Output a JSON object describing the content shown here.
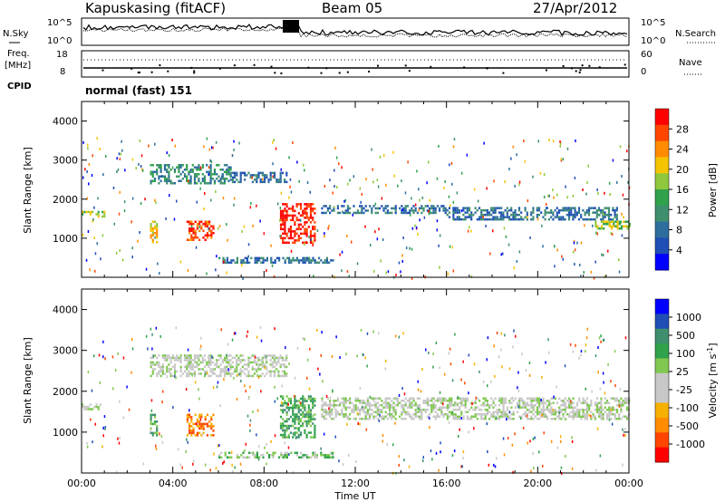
{
  "header": {
    "station": "Kapuskasing (fitACF)",
    "beam": "Beam 05",
    "date": "27/Apr/2012",
    "cpid_label": "CPID",
    "cpid_value": "normal (fast) 151"
  },
  "noise_panel": {
    "left_label": "N.Sky",
    "right_label": "N.Search",
    "left_ticks": [
      "10^5",
      "10^0"
    ],
    "right_ticks": [
      "10^5",
      "10^0"
    ]
  },
  "freq_panel": {
    "left_label_1": "Freq.",
    "left_label_2": "[MHz]",
    "right_label": "Nave",
    "left_ticks": [
      18,
      8
    ],
    "right_ticks": [
      60,
      0
    ]
  },
  "colors": {
    "power_scale": [
      "#0000ff",
      "#1f4fb4",
      "#2e6e9e",
      "#3f8f6f",
      "#2fa24b",
      "#90c83c",
      "#f5c400",
      "#ff8c00",
      "#ff4500",
      "#ff0000"
    ],
    "velocity_scale": [
      "#ff0000",
      "#ff4500",
      "#ff8c00",
      "#f5b000",
      "#c8c8c8",
      "#c8c8c8",
      "#80c850",
      "#2fa24b",
      "#3f8f6f",
      "#1f4fb4",
      "#0000ff"
    ]
  },
  "chart_data": [
    {
      "type": "heatmap",
      "name": "power",
      "ylabel": "Slant Range [km]",
      "yticks": [
        1000,
        2000,
        3000,
        4000
      ],
      "ylim": [
        0,
        4500
      ],
      "xlim_hours": [
        0,
        24
      ],
      "colorbar_label": "Power [dB]",
      "colorbar_ticks": [
        "28",
        "24",
        "20",
        "16",
        "12",
        "8",
        "4"
      ],
      "echo_regions": [
        {
          "t": [
            0.0,
            1.0
          ],
          "range": [
            1550,
            1700
          ],
          "level": 5
        },
        {
          "t": [
            3.0,
            3.3
          ],
          "range": [
            900,
            1450
          ],
          "level": 6
        },
        {
          "t": [
            3.0,
            6.5
          ],
          "range": [
            2400,
            2900
          ],
          "level": 3
        },
        {
          "t": [
            6.5,
            9.0
          ],
          "range": [
            2450,
            2700
          ],
          "level": 2
        },
        {
          "t": [
            4.6,
            5.8
          ],
          "range": [
            950,
            1450
          ],
          "level": 8
        },
        {
          "t": [
            8.7,
            10.2
          ],
          "range": [
            900,
            1900
          ],
          "level": 9
        },
        {
          "t": [
            10.5,
            16.0
          ],
          "range": [
            1650,
            1850
          ],
          "level": 2
        },
        {
          "t": [
            16.0,
            23.5
          ],
          "range": [
            1500,
            1800
          ],
          "level": 2
        },
        {
          "t": [
            22.5,
            24.0
          ],
          "range": [
            1250,
            1450
          ],
          "level": 5
        },
        {
          "t": [
            6.0,
            11.0
          ],
          "range": [
            380,
            520
          ],
          "level": 2
        }
      ]
    },
    {
      "type": "heatmap",
      "name": "velocity",
      "ylabel": "Slant Range [km]",
      "yticks": [
        1000,
        2000,
        3000,
        4000
      ],
      "ylim": [
        0,
        4500
      ],
      "xlim_hours": [
        0,
        24
      ],
      "xticks": [
        "00:00",
        "04:00",
        "08:00",
        "12:00",
        "16:00",
        "20:00",
        "00:00"
      ],
      "xlabel": "Time UT",
      "colorbar_label": "Velocity [m s^-1]",
      "colorbar_ticks": [
        "1000",
        "500",
        "100",
        "25",
        "-25",
        "-100",
        "-500",
        "-1000"
      ],
      "echo_regions": [
        {
          "t": [
            0.0,
            1.0
          ],
          "range": [
            1550,
            1700
          ],
          "level": 5
        },
        {
          "t": [
            3.0,
            3.3
          ],
          "range": [
            900,
            1450
          ],
          "level": 7
        },
        {
          "t": [
            3.0,
            9.0
          ],
          "range": [
            2400,
            2900
          ],
          "level": 5
        },
        {
          "t": [
            4.6,
            5.8
          ],
          "range": [
            950,
            1450
          ],
          "level": 2
        },
        {
          "t": [
            8.7,
            10.2
          ],
          "range": [
            900,
            1900
          ],
          "level": 7
        },
        {
          "t": [
            10.5,
            24.0
          ],
          "range": [
            1300,
            1850
          ],
          "level": 5
        },
        {
          "t": [
            6.0,
            11.0
          ],
          "range": [
            380,
            520
          ],
          "level": 6
        }
      ]
    }
  ]
}
